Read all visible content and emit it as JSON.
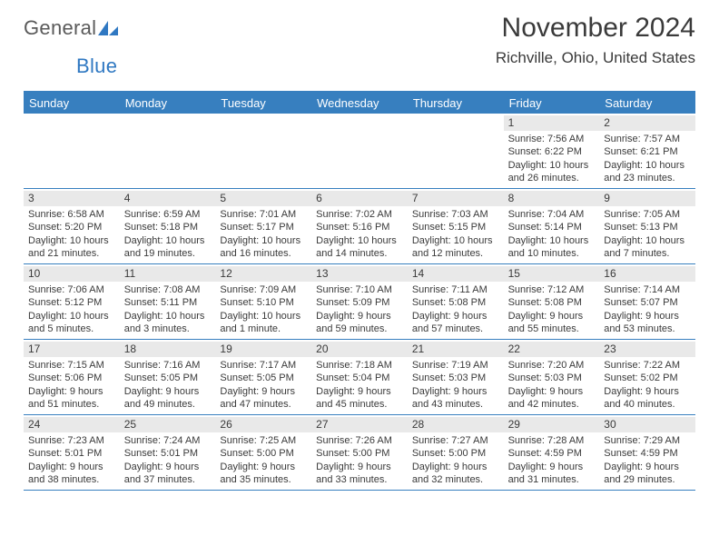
{
  "branding": {
    "logo_part1": "General",
    "logo_part2": "Blue"
  },
  "header": {
    "title": "November 2024",
    "location": "Richville, Ohio, United States"
  },
  "style": {
    "accent": "#377fbf",
    "daynum_bg": "#e9e9e9",
    "text_color": "#3a3a3a",
    "header_text": "#ffffff",
    "page_bg": "#ffffff",
    "dayname_fontsize": 13,
    "cell_fontsize": 11,
    "title_fontsize": 30,
    "location_fontsize": 17
  },
  "daynames": [
    "Sunday",
    "Monday",
    "Tuesday",
    "Wednesday",
    "Thursday",
    "Friday",
    "Saturday"
  ],
  "weeks": [
    [
      {
        "blank": true
      },
      {
        "blank": true
      },
      {
        "blank": true
      },
      {
        "blank": true
      },
      {
        "blank": true
      },
      {
        "day": 1,
        "sunrise": "7:56 AM",
        "sunset": "6:22 PM",
        "daylight_a": "Daylight: 10 hours",
        "daylight_b": "and 26 minutes."
      },
      {
        "day": 2,
        "sunrise": "7:57 AM",
        "sunset": "6:21 PM",
        "daylight_a": "Daylight: 10 hours",
        "daylight_b": "and 23 minutes."
      }
    ],
    [
      {
        "day": 3,
        "sunrise": "6:58 AM",
        "sunset": "5:20 PM",
        "daylight_a": "Daylight: 10 hours",
        "daylight_b": "and 21 minutes."
      },
      {
        "day": 4,
        "sunrise": "6:59 AM",
        "sunset": "5:18 PM",
        "daylight_a": "Daylight: 10 hours",
        "daylight_b": "and 19 minutes."
      },
      {
        "day": 5,
        "sunrise": "7:01 AM",
        "sunset": "5:17 PM",
        "daylight_a": "Daylight: 10 hours",
        "daylight_b": "and 16 minutes."
      },
      {
        "day": 6,
        "sunrise": "7:02 AM",
        "sunset": "5:16 PM",
        "daylight_a": "Daylight: 10 hours",
        "daylight_b": "and 14 minutes."
      },
      {
        "day": 7,
        "sunrise": "7:03 AM",
        "sunset": "5:15 PM",
        "daylight_a": "Daylight: 10 hours",
        "daylight_b": "and 12 minutes."
      },
      {
        "day": 8,
        "sunrise": "7:04 AM",
        "sunset": "5:14 PM",
        "daylight_a": "Daylight: 10 hours",
        "daylight_b": "and 10 minutes."
      },
      {
        "day": 9,
        "sunrise": "7:05 AM",
        "sunset": "5:13 PM",
        "daylight_a": "Daylight: 10 hours",
        "daylight_b": "and 7 minutes."
      }
    ],
    [
      {
        "day": 10,
        "sunrise": "7:06 AM",
        "sunset": "5:12 PM",
        "daylight_a": "Daylight: 10 hours",
        "daylight_b": "and 5 minutes."
      },
      {
        "day": 11,
        "sunrise": "7:08 AM",
        "sunset": "5:11 PM",
        "daylight_a": "Daylight: 10 hours",
        "daylight_b": "and 3 minutes."
      },
      {
        "day": 12,
        "sunrise": "7:09 AM",
        "sunset": "5:10 PM",
        "daylight_a": "Daylight: 10 hours",
        "daylight_b": "and 1 minute."
      },
      {
        "day": 13,
        "sunrise": "7:10 AM",
        "sunset": "5:09 PM",
        "daylight_a": "Daylight: 9 hours",
        "daylight_b": "and 59 minutes."
      },
      {
        "day": 14,
        "sunrise": "7:11 AM",
        "sunset": "5:08 PM",
        "daylight_a": "Daylight: 9 hours",
        "daylight_b": "and 57 minutes."
      },
      {
        "day": 15,
        "sunrise": "7:12 AM",
        "sunset": "5:08 PM",
        "daylight_a": "Daylight: 9 hours",
        "daylight_b": "and 55 minutes."
      },
      {
        "day": 16,
        "sunrise": "7:14 AM",
        "sunset": "5:07 PM",
        "daylight_a": "Daylight: 9 hours",
        "daylight_b": "and 53 minutes."
      }
    ],
    [
      {
        "day": 17,
        "sunrise": "7:15 AM",
        "sunset": "5:06 PM",
        "daylight_a": "Daylight: 9 hours",
        "daylight_b": "and 51 minutes."
      },
      {
        "day": 18,
        "sunrise": "7:16 AM",
        "sunset": "5:05 PM",
        "daylight_a": "Daylight: 9 hours",
        "daylight_b": "and 49 minutes."
      },
      {
        "day": 19,
        "sunrise": "7:17 AM",
        "sunset": "5:05 PM",
        "daylight_a": "Daylight: 9 hours",
        "daylight_b": "and 47 minutes."
      },
      {
        "day": 20,
        "sunrise": "7:18 AM",
        "sunset": "5:04 PM",
        "daylight_a": "Daylight: 9 hours",
        "daylight_b": "and 45 minutes."
      },
      {
        "day": 21,
        "sunrise": "7:19 AM",
        "sunset": "5:03 PM",
        "daylight_a": "Daylight: 9 hours",
        "daylight_b": "and 43 minutes."
      },
      {
        "day": 22,
        "sunrise": "7:20 AM",
        "sunset": "5:03 PM",
        "daylight_a": "Daylight: 9 hours",
        "daylight_b": "and 42 minutes."
      },
      {
        "day": 23,
        "sunrise": "7:22 AM",
        "sunset": "5:02 PM",
        "daylight_a": "Daylight: 9 hours",
        "daylight_b": "and 40 minutes."
      }
    ],
    [
      {
        "day": 24,
        "sunrise": "7:23 AM",
        "sunset": "5:01 PM",
        "daylight_a": "Daylight: 9 hours",
        "daylight_b": "and 38 minutes."
      },
      {
        "day": 25,
        "sunrise": "7:24 AM",
        "sunset": "5:01 PM",
        "daylight_a": "Daylight: 9 hours",
        "daylight_b": "and 37 minutes."
      },
      {
        "day": 26,
        "sunrise": "7:25 AM",
        "sunset": "5:00 PM",
        "daylight_a": "Daylight: 9 hours",
        "daylight_b": "and 35 minutes."
      },
      {
        "day": 27,
        "sunrise": "7:26 AM",
        "sunset": "5:00 PM",
        "daylight_a": "Daylight: 9 hours",
        "daylight_b": "and 33 minutes."
      },
      {
        "day": 28,
        "sunrise": "7:27 AM",
        "sunset": "5:00 PM",
        "daylight_a": "Daylight: 9 hours",
        "daylight_b": "and 32 minutes."
      },
      {
        "day": 29,
        "sunrise": "7:28 AM",
        "sunset": "4:59 PM",
        "daylight_a": "Daylight: 9 hours",
        "daylight_b": "and 31 minutes."
      },
      {
        "day": 30,
        "sunrise": "7:29 AM",
        "sunset": "4:59 PM",
        "daylight_a": "Daylight: 9 hours",
        "daylight_b": "and 29 minutes."
      }
    ]
  ],
  "labels": {
    "sunrise_prefix": "Sunrise: ",
    "sunset_prefix": "Sunset: "
  }
}
